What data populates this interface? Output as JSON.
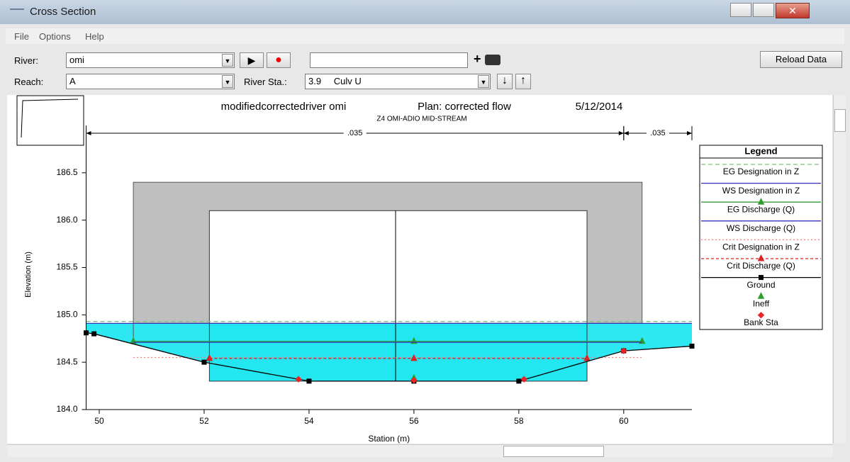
{
  "window": {
    "title": "Cross Section",
    "menu": [
      "File",
      "Options",
      "Help"
    ]
  },
  "toolbar": {
    "river_label": "River:",
    "river": "omi",
    "reach_label": "Reach:",
    "reach": "A",
    "river_sta_label": "River Sta.:",
    "river_sta": "3.9",
    "river_sta_type": "Culv U",
    "reload": "Reload Data"
  },
  "chart_data": {
    "type": "cross-section",
    "title": "modifiedcorrectedriver omi",
    "plan": "Plan: corrected flow",
    "date": "5/12/2014",
    "subtitle": "Z4 OMI-ADIO MID-STREAM",
    "xlabel": "Station (m)",
    "ylabel": "Elevation (m)",
    "xlim": [
      49.75,
      61.3
    ],
    "xticks": [
      50,
      52,
      54,
      56,
      58,
      60
    ],
    "ylim": [
      184.0,
      187.0
    ],
    "yticks": [
      {
        "value": 184,
        "label": "184.0"
      },
      184.5,
      {
        "value": 185,
        "label": "185.0"
      },
      185.5,
      {
        "value": 186,
        "label": "186.0"
      },
      186.5
    ],
    "n_values": [
      {
        "label": ".035",
        "from": 49.75,
        "to": 60.0
      },
      {
        "label": ".035",
        "from": 60.0,
        "to": 61.3
      }
    ],
    "culvert": {
      "deck_left": 50.65,
      "deck_right": 60.35,
      "deck_top": 186.4,
      "opening_left": 52.1,
      "opening_right": 59.3,
      "opening_top": 186.1,
      "invert": 184.3,
      "centerline": 55.65
    },
    "legend_title": "Legend",
    "series": [
      {
        "name": "EG Designation in Z",
        "color": "#7cc47c",
        "dash": "6 4",
        "line": true,
        "marker": null,
        "x": [
          49.75,
          61.3
        ],
        "values": [
          184.93,
          184.93
        ]
      },
      {
        "name": "WS Designation in Z",
        "color": "#3333cc",
        "dash": null,
        "line": true,
        "marker": null,
        "x": [
          49.75,
          61.3
        ],
        "values": [
          184.91,
          184.91
        ]
      },
      {
        "name": "EG Discharge (Q)",
        "color": "#2e9e2e",
        "dash": null,
        "line": true,
        "marker": "triangle",
        "x": [
          50.65,
          56.0,
          60.35
        ],
        "values": [
          184.72,
          184.72,
          184.72
        ]
      },
      {
        "name": "WS Discharge (Q)",
        "color": "#3333cc",
        "dash": null,
        "line": true,
        "marker": null,
        "x": [
          50.65,
          60.35
        ],
        "values": [
          184.71,
          184.71
        ]
      },
      {
        "name": "Crit Designation in Z",
        "color": "#ff7777",
        "dash": "2 3",
        "line": true,
        "marker": null,
        "x": [
          50.65,
          60.35
        ],
        "values": [
          184.55,
          184.55
        ]
      },
      {
        "name": "Crit Discharge (Q)",
        "color": "#dd2222",
        "dash": "4 3",
        "line": true,
        "marker": "triangle",
        "x": [
          52.1,
          56.0,
          59.3
        ],
        "values": [
          184.54,
          184.54,
          184.54
        ]
      },
      {
        "name": "Ground",
        "color": "#000000",
        "dash": null,
        "line": true,
        "marker": "square",
        "x": [
          49.75,
          49.9,
          52.0,
          54.0,
          56.0,
          58.0,
          60.0,
          61.3
        ],
        "values": [
          184.81,
          184.8,
          184.5,
          184.3,
          184.3,
          184.3,
          184.62,
          184.67
        ]
      },
      {
        "name": "Ineff",
        "color": "#2e9e2e",
        "dash": null,
        "line": false,
        "marker": "triangle",
        "x": [
          56.0
        ],
        "values": [
          184.33
        ]
      },
      {
        "name": "Bank Sta",
        "color": "#ee2222",
        "dash": null,
        "line": false,
        "marker": "diamond",
        "x": [
          53.8,
          56.0,
          58.1,
          60.0
        ],
        "values": [
          184.32,
          184.31,
          184.32,
          184.62
        ]
      }
    ]
  }
}
